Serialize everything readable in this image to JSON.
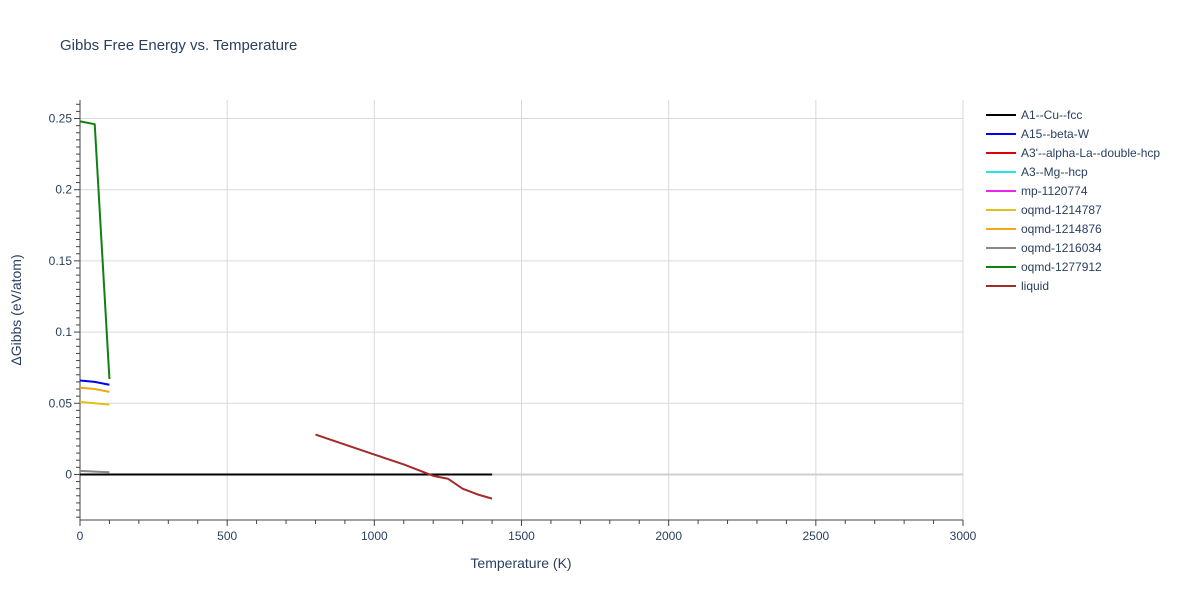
{
  "chart_data": {
    "type": "line",
    "title": "Gibbs Free Energy vs. Temperature",
    "xlabel": "Temperature (K)",
    "ylabel": "ΔGibbs (eV/atom)",
    "xlim": [
      0,
      3000
    ],
    "ylim": [
      -0.032,
      0.263
    ],
    "xticks": [
      0,
      500,
      1000,
      1500,
      2000,
      2500,
      3000
    ],
    "xtick_labels": [
      "0",
      "500",
      "1000",
      "1500",
      "2000",
      "2500",
      "3000"
    ],
    "yticks": [
      0,
      0.05,
      0.1,
      0.15,
      0.2,
      0.25
    ],
    "ytick_labels": [
      "0",
      "0.05",
      "0.1",
      "0.15",
      "0.2",
      "0.25"
    ],
    "grid": true,
    "legend_position": "right",
    "series": [
      {
        "name": "A1--Cu--fcc",
        "color": "#000000",
        "x": [
          0,
          100,
          200,
          300,
          400,
          500,
          600,
          700,
          800,
          900,
          1000,
          1100,
          1200,
          1300,
          1400
        ],
        "y": [
          0,
          0,
          0,
          0,
          0,
          0,
          0,
          0,
          0,
          0,
          0,
          0,
          0,
          0,
          0
        ]
      },
      {
        "name": "A15--beta-W",
        "color": "#0000ee",
        "x": [
          0,
          50,
          100
        ],
        "y": [
          0.066,
          0.065,
          0.063
        ]
      },
      {
        "name": "A3'--alpha-La--double-hcp",
        "color": "#dd0000",
        "x": [],
        "y": []
      },
      {
        "name": "A3--Mg--hcp",
        "color": "#22e5e5",
        "x": [],
        "y": []
      },
      {
        "name": "mp-1120774",
        "color": "#ee22ee",
        "x": [],
        "y": []
      },
      {
        "name": "oqmd-1214787",
        "color": "#e0c020",
        "x": [
          0,
          50,
          100
        ],
        "y": [
          0.051,
          0.05,
          0.049
        ]
      },
      {
        "name": "oqmd-1214876",
        "color": "#f0a818",
        "x": [
          0,
          50,
          100
        ],
        "y": [
          0.061,
          0.06,
          0.058
        ]
      },
      {
        "name": "oqmd-1216034",
        "color": "#888888",
        "x": [
          0,
          50,
          100
        ],
        "y": [
          0.0025,
          0.002,
          0.0015
        ]
      },
      {
        "name": "oqmd-1277912",
        "color": "#108010",
        "x": [
          0,
          50,
          100
        ],
        "y": [
          0.248,
          0.246,
          0.067
        ]
      },
      {
        "name": "liquid",
        "color": "#a52a2a",
        "x": [
          800,
          900,
          1000,
          1100,
          1200,
          1250,
          1300,
          1350,
          1400
        ],
        "y": [
          0.028,
          0.021,
          0.014,
          0.007,
          -0.001,
          -0.003,
          -0.01,
          -0.014,
          -0.017
        ]
      }
    ]
  }
}
